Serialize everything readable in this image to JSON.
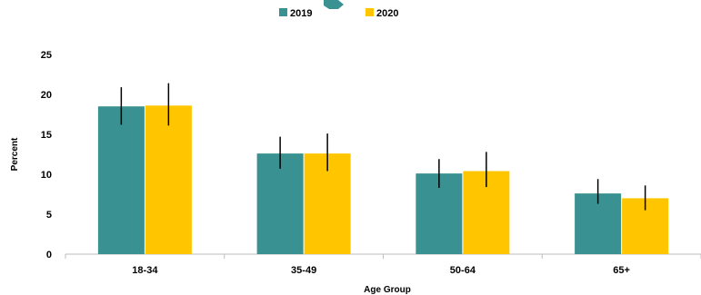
{
  "chart_data": {
    "type": "bar",
    "title": "",
    "xlabel": "Age Group",
    "ylabel": "Percent",
    "ylim": [
      0,
      25
    ],
    "yticks": [
      0,
      5,
      10,
      15,
      20,
      25
    ],
    "grid": false,
    "legend_position": "top-center",
    "categories": [
      "18-34",
      "35-49",
      "50-64",
      "65+"
    ],
    "series": [
      {
        "name": "2019",
        "color": "#3a9191",
        "values": [
          18.5,
          12.6,
          10.1,
          7.6
        ],
        "error_low": [
          16.2,
          10.7,
          8.3,
          6.3
        ],
        "error_high": [
          20.9,
          14.7,
          11.9,
          9.4
        ]
      },
      {
        "name": "2020",
        "color": "#ffc600",
        "values": [
          18.6,
          12.6,
          10.4,
          7.0
        ],
        "error_low": [
          16.1,
          10.4,
          8.4,
          5.5
        ],
        "error_high": [
          21.4,
          15.1,
          12.8,
          8.6
        ]
      }
    ]
  }
}
